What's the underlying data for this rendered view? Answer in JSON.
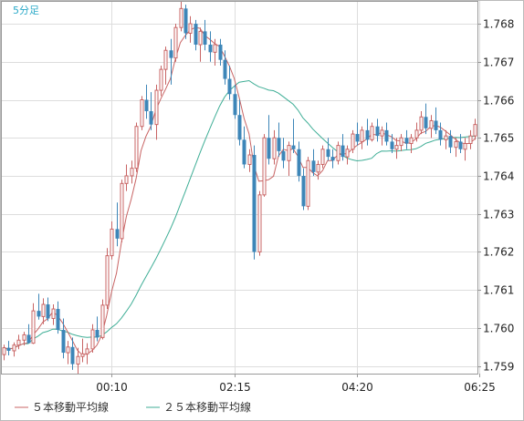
{
  "chart_data": {
    "type": "candlestick",
    "period_label": "5分足",
    "x_tick_labels": [
      "00:10",
      "02:15",
      "04:20",
      "06:25"
    ],
    "x_tick_positions": [
      22,
      47,
      72,
      97
    ],
    "ylim": [
      1.7588,
      1.7686
    ],
    "y_ticks": [
      1.759,
      1.76,
      1.761,
      1.762,
      1.763,
      1.764,
      1.765,
      1.766,
      1.767,
      1.768
    ],
    "grid": true,
    "legend_position": "bottom-left",
    "colors": {
      "up": "#c86464",
      "down": "#3d86b8",
      "ma5": "#c86464",
      "ma25": "#3fae96",
      "grid": "#dddddd",
      "axis": "#999999"
    },
    "series": [
      {
        "key": "ma5",
        "name": "５本移動平均線"
      },
      {
        "key": "ma25",
        "name": "２５本移動平均線"
      }
    ],
    "candles": [
      [
        1.7593,
        1.75956,
        1.75915,
        1.75948
      ],
      [
        1.75948,
        1.75966,
        1.75928,
        1.7594
      ],
      [
        1.7594,
        1.75962,
        1.75925,
        1.75955
      ],
      [
        1.75955,
        1.75982,
        1.75944,
        1.75968
      ],
      [
        1.75968,
        1.7599,
        1.75954,
        1.75982
      ],
      [
        1.75982,
        1.7601,
        1.75964,
        1.7596
      ],
      [
        1.7596,
        1.76065,
        1.75958,
        1.76045
      ],
      [
        1.76045,
        1.7609,
        1.76022,
        1.7603
      ],
      [
        1.7603,
        1.76078,
        1.7601,
        1.76062
      ],
      [
        1.76062,
        1.7608,
        1.76018,
        1.76025
      ],
      [
        1.76025,
        1.76062,
        1.76008,
        1.7605
      ],
      [
        1.7605,
        1.7607,
        1.75985,
        1.75995
      ],
      [
        1.75995,
        1.76025,
        1.7592,
        1.75935
      ],
      [
        1.75935,
        1.75966,
        1.75905,
        1.7595
      ],
      [
        1.7595,
        1.75975,
        1.7589,
        1.75905
      ],
      [
        1.75905,
        1.75948,
        1.7588,
        1.75925
      ],
      [
        1.75925,
        1.75972,
        1.7591,
        1.75932
      ],
      [
        1.75932,
        1.7596,
        1.75905,
        1.75945
      ],
      [
        1.75945,
        1.7601,
        1.75935,
        1.75995
      ],
      [
        1.75995,
        1.7603,
        1.75965,
        1.75975
      ],
      [
        1.75975,
        1.76075,
        1.7597,
        1.7606
      ],
      [
        1.7606,
        1.7621,
        1.7605,
        1.7619
      ],
      [
        1.7619,
        1.7628,
        1.7618,
        1.7626
      ],
      [
        1.7626,
        1.7633,
        1.76215,
        1.76235
      ],
      [
        1.76235,
        1.7639,
        1.76225,
        1.7638
      ],
      [
        1.7638,
        1.7643,
        1.7636,
        1.764
      ],
      [
        1.764,
        1.7644,
        1.7638,
        1.7642
      ],
      [
        1.7642,
        1.7654,
        1.7641,
        1.7653
      ],
      [
        1.7653,
        1.7661,
        1.7652,
        1.766
      ],
      [
        1.766,
        1.7664,
        1.7655,
        1.7657
      ],
      [
        1.7657,
        1.7662,
        1.7652,
        1.76535
      ],
      [
        1.76535,
        1.7664,
        1.76495,
        1.76625
      ],
      [
        1.76625,
        1.7669,
        1.7661,
        1.7668
      ],
      [
        1.7668,
        1.7674,
        1.7664,
        1.7673
      ],
      [
        1.7673,
        1.7676,
        1.7664,
        1.7671
      ],
      [
        1.7671,
        1.768,
        1.767,
        1.7679
      ],
      [
        1.7679,
        1.7686,
        1.7678,
        1.7684
      ],
      [
        1.7684,
        1.7685,
        1.7676,
        1.76775
      ],
      [
        1.76775,
        1.7682,
        1.7675,
        1.768
      ],
      [
        1.768,
        1.7681,
        1.7673,
        1.76745
      ],
      [
        1.76745,
        1.7679,
        1.767,
        1.7678
      ],
      [
        1.7678,
        1.7681,
        1.7673,
        1.76745
      ],
      [
        1.76745,
        1.7678,
        1.767,
        1.76725
      ],
      [
        1.76725,
        1.7676,
        1.7669,
        1.76745
      ],
      [
        1.76745,
        1.7676,
        1.7669,
        1.76705
      ],
      [
        1.76705,
        1.7673,
        1.7664,
        1.76655
      ],
      [
        1.76655,
        1.7669,
        1.766,
        1.76615
      ],
      [
        1.76615,
        1.7664,
        1.7655,
        1.7656
      ],
      [
        1.7656,
        1.766,
        1.7648,
        1.76495
      ],
      [
        1.76495,
        1.7653,
        1.7642,
        1.7643
      ],
      [
        1.7643,
        1.7647,
        1.7641,
        1.76455
      ],
      [
        1.76455,
        1.7648,
        1.7618,
        1.762
      ],
      [
        1.762,
        1.7636,
        1.7619,
        1.7635
      ],
      [
        1.7635,
        1.7651,
        1.76345,
        1.765
      ],
      [
        1.765,
        1.7656,
        1.7643,
        1.76445
      ],
      [
        1.76445,
        1.7652,
        1.7643,
        1.765
      ],
      [
        1.765,
        1.7654,
        1.7645,
        1.76465
      ],
      [
        1.76465,
        1.765,
        1.7642,
        1.7644
      ],
      [
        1.7644,
        1.7649,
        1.764,
        1.7648
      ],
      [
        1.7648,
        1.7655,
        1.7646,
        1.7647
      ],
      [
        1.7647,
        1.7649,
        1.76385,
        1.764
      ],
      [
        1.764,
        1.7642,
        1.7631,
        1.7632
      ],
      [
        1.7632,
        1.7645,
        1.7631,
        1.7644
      ],
      [
        1.7644,
        1.7647,
        1.764,
        1.7641
      ],
      [
        1.7641,
        1.7644,
        1.7639,
        1.7643
      ],
      [
        1.7643,
        1.7648,
        1.7642,
        1.7647
      ],
      [
        1.7647,
        1.765,
        1.7644,
        1.7645
      ],
      [
        1.7645,
        1.7647,
        1.7642,
        1.7644
      ],
      [
        1.7644,
        1.7649,
        1.7643,
        1.7648
      ],
      [
        1.7648,
        1.7651,
        1.7644,
        1.7645
      ],
      [
        1.7645,
        1.7648,
        1.7643,
        1.7647
      ],
      [
        1.7647,
        1.7652,
        1.7646,
        1.7651
      ],
      [
        1.7651,
        1.7654,
        1.7648,
        1.7649
      ],
      [
        1.7649,
        1.7653,
        1.7647,
        1.7652
      ],
      [
        1.7652,
        1.7655,
        1.7648,
        1.76495
      ],
      [
        1.76495,
        1.7654,
        1.7649,
        1.7653
      ],
      [
        1.7653,
        1.7655,
        1.7649,
        1.76505
      ],
      [
        1.76505,
        1.7653,
        1.7648,
        1.7652
      ],
      [
        1.7652,
        1.7654,
        1.7648,
        1.7649
      ],
      [
        1.7649,
        1.7651,
        1.7646,
        1.7647
      ],
      [
        1.7647,
        1.765,
        1.76445,
        1.7648
      ],
      [
        1.7648,
        1.7651,
        1.76465,
        1.765
      ],
      [
        1.765,
        1.7652,
        1.7647,
        1.76485
      ],
      [
        1.76485,
        1.7651,
        1.7646,
        1.765
      ],
      [
        1.765,
        1.7654,
        1.7649,
        1.7652
      ],
      [
        1.7652,
        1.7657,
        1.7651,
        1.76555
      ],
      [
        1.76555,
        1.7659,
        1.7651,
        1.76525
      ],
      [
        1.76525,
        1.7656,
        1.765,
        1.76545
      ],
      [
        1.76545,
        1.7658,
        1.7651,
        1.7652
      ],
      [
        1.7652,
        1.7654,
        1.7648,
        1.76495
      ],
      [
        1.76495,
        1.7652,
        1.7647,
        1.76505
      ],
      [
        1.76505,
        1.7652,
        1.7646,
        1.76475
      ],
      [
        1.76475,
        1.765,
        1.7645,
        1.7649
      ],
      [
        1.7649,
        1.7651,
        1.7646,
        1.7647
      ],
      [
        1.7647,
        1.765,
        1.7644,
        1.76485
      ],
      [
        1.76485,
        1.7652,
        1.7647,
        1.76505
      ],
      [
        1.76505,
        1.7655,
        1.76495,
        1.76535
      ]
    ]
  }
}
